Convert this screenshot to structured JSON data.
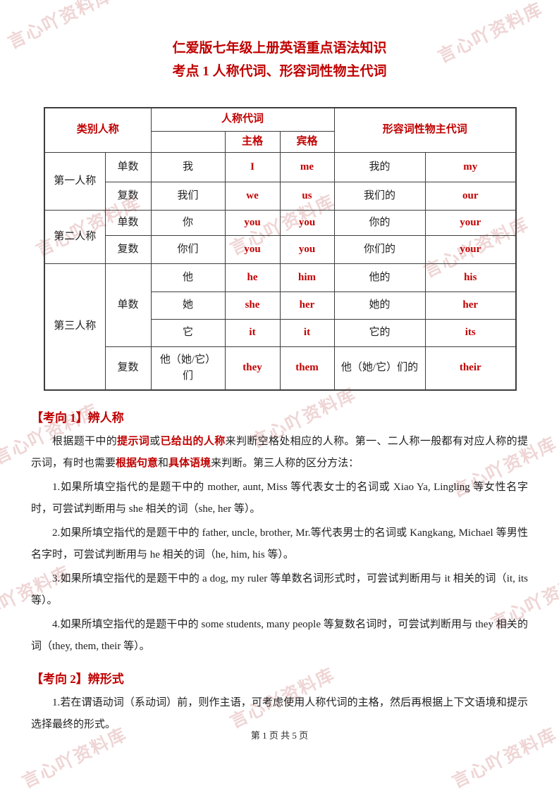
{
  "page": {
    "title_line1": "仁爱版七年级上册英语重点语法知识",
    "title_line2": "考点 1 人称代词、形容词性物主代词",
    "footer": "第 1 页 共 5 页",
    "watermark_text": "言心吖资料库"
  },
  "colors": {
    "accent_red": "#c00000",
    "text_black": "#1f1f1f",
    "table_border": "#3d3d3d",
    "watermark_pink": "rgba(205,125,125,0.32)"
  },
  "table": {
    "header": {
      "category": "类别人称",
      "personal": "人称代词",
      "subjective": "主格",
      "objective": "宾格",
      "possessive": "形容词性物主代词"
    },
    "rows": [
      {
        "group": "第一人称",
        "num": "单数",
        "cn": "我",
        "subj": "I",
        "obj": "me",
        "poss_cn": "我的",
        "poss_en": "my"
      },
      {
        "num": "复数",
        "cn": "我们",
        "subj": "we",
        "obj": "us",
        "poss_cn": "我们的",
        "poss_en": "our"
      },
      {
        "group": "第二人称",
        "num": "单数",
        "cn": "你",
        "subj": "you",
        "obj": "you",
        "poss_cn": "你的",
        "poss_en": "your"
      },
      {
        "num": "复数",
        "cn": "你们",
        "subj": "you",
        "obj": "you",
        "poss_cn": "你们的",
        "poss_en": "your"
      },
      {
        "group": "第三人称",
        "num": "单数",
        "cn": "他",
        "subj": "he",
        "obj": "him",
        "poss_cn": "他的",
        "poss_en": "his"
      },
      {
        "cn": "她",
        "subj": "she",
        "obj": "her",
        "poss_cn": "她的",
        "poss_en": "her"
      },
      {
        "cn": "它",
        "subj": "it",
        "obj": "it",
        "poss_cn": "它的",
        "poss_en": "its"
      },
      {
        "num": "复数",
        "cn": "他（她/它）们",
        "subj": "they",
        "obj": "them",
        "poss_cn": "他（她/它）们的",
        "poss_en": "their"
      }
    ]
  },
  "sections": [
    {
      "heading": "【考向 1】辨人称",
      "paragraphs": [
        {
          "segments": [
            {
              "t": "根据题干中的"
            },
            {
              "t": "提示词",
              "red": true
            },
            {
              "t": "或"
            },
            {
              "t": "已给出的人称",
              "red": true
            },
            {
              "t": "来判断空格处相应的人称。第一、二人称一般都有对应人称的提示词，有时也需要"
            },
            {
              "t": "根据句意",
              "red": true
            },
            {
              "t": "和"
            },
            {
              "t": "具体语境",
              "red": true
            },
            {
              "t": "来判断。第三人称的区分方法："
            }
          ]
        },
        {
          "segments": [
            {
              "t": "1.如果所填空指代的是题干中的 mother, aunt, Miss 等代表女士的名词或 Xiao Ya, Lingling 等女性名字时，可尝试判断用与 she 相关的词（she, her 等）。"
            }
          ]
        },
        {
          "segments": [
            {
              "t": "2.如果所填空指代的是题干中的 father, uncle, brother, Mr.等代表男士的名词或 Kangkang, Michael 等男性名字时，可尝试判断用与 he 相关的词（he, him, his 等）。"
            }
          ]
        },
        {
          "segments": [
            {
              "t": "3.如果所填空指代的是题干中的 a dog, my ruler 等单数名词形式时，可尝试判断用与 it 相关的词（it, its 等）。"
            }
          ]
        },
        {
          "segments": [
            {
              "t": "4.如果所填空指代的是题干中的 some students, many people 等复数名词时，可尝试判断用与 they 相关的词（they, them, their 等）。"
            }
          ]
        }
      ]
    },
    {
      "heading": "【考向 2】辨形式",
      "paragraphs": [
        {
          "segments": [
            {
              "t": "1.若在谓语动词（系动词）前，则作主语，可考虑使用人称代词的主格，然后再根据上下文语境和提示选择最终的形式。"
            }
          ]
        }
      ]
    }
  ]
}
